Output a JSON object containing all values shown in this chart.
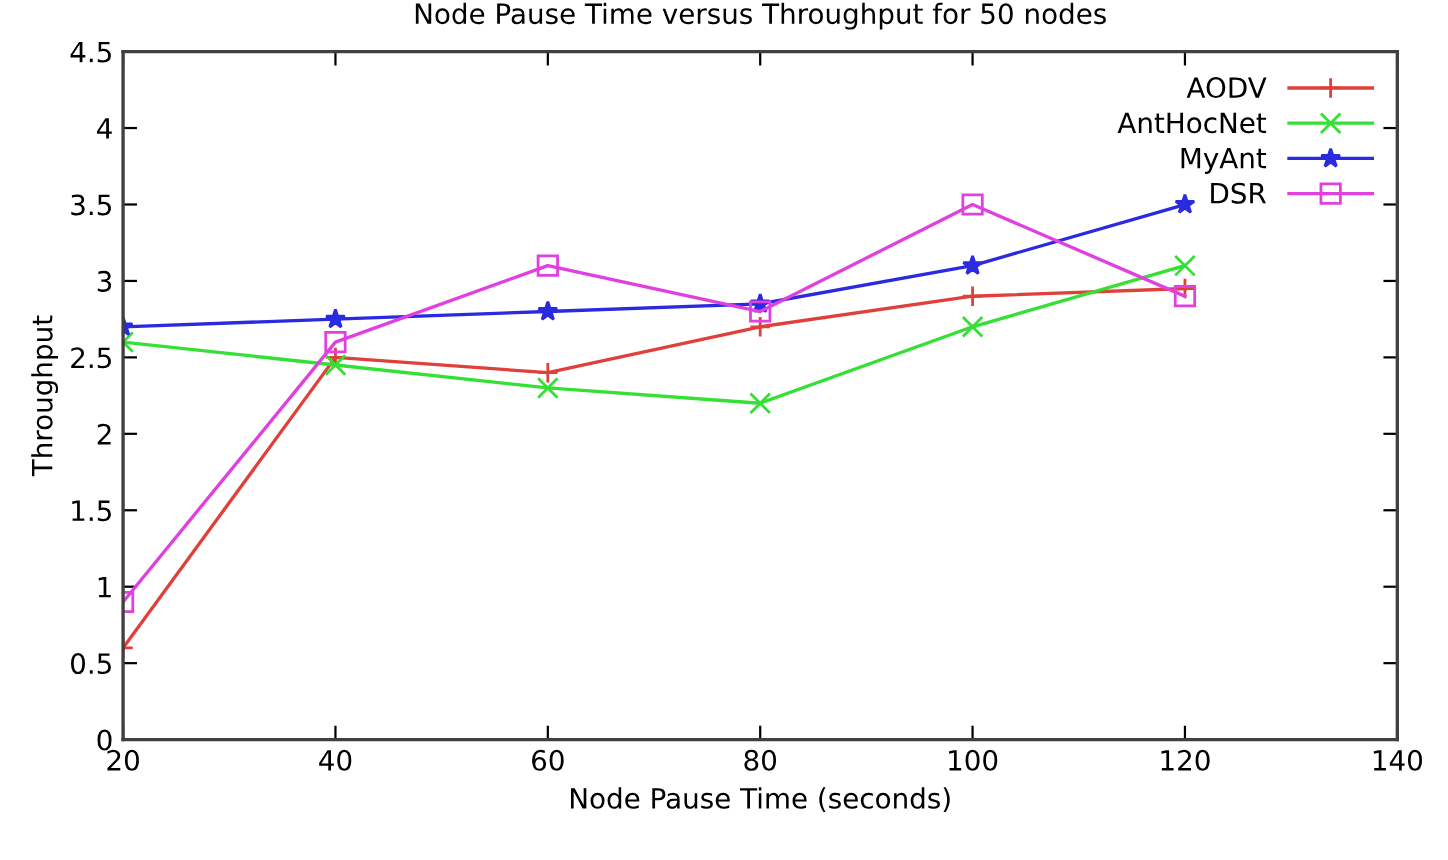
{
  "chart_data": {
    "type": "line",
    "title": "Node Pause Time versus Throughput for 50 nodes",
    "xlabel": "Node Pause Time (seconds)",
    "ylabel": "Throughput",
    "x": [
      20,
      40,
      60,
      80,
      100,
      120
    ],
    "series": [
      {
        "name": "AODV",
        "color": "#e0403a",
        "marker": "plus",
        "values": [
          0.6,
          2.5,
          2.4,
          2.7,
          2.9,
          2.95
        ]
      },
      {
        "name": "AntHocNet",
        "color": "#33e033",
        "marker": "cross",
        "values": [
          2.6,
          2.45,
          2.3,
          2.2,
          2.7,
          3.1
        ]
      },
      {
        "name": "MyAnt",
        "color": "#2a2ae0",
        "marker": "star",
        "values": [
          2.7,
          2.75,
          2.8,
          2.85,
          3.1,
          3.5
        ]
      },
      {
        "name": "DSR",
        "color": "#e040e0",
        "marker": "square",
        "values": [
          0.9,
          2.6,
          3.1,
          2.8,
          3.5,
          2.9
        ]
      }
    ],
    "xlim": [
      20,
      140
    ],
    "xticks": [
      20,
      40,
      60,
      80,
      100,
      120,
      140
    ],
    "ylim": [
      0,
      4.5
    ],
    "yticks": [
      0,
      0.5,
      1,
      1.5,
      2,
      2.5,
      3,
      3.5,
      4,
      4.5
    ],
    "grid": false,
    "legend": "top right",
    "line_style": "solid"
  }
}
